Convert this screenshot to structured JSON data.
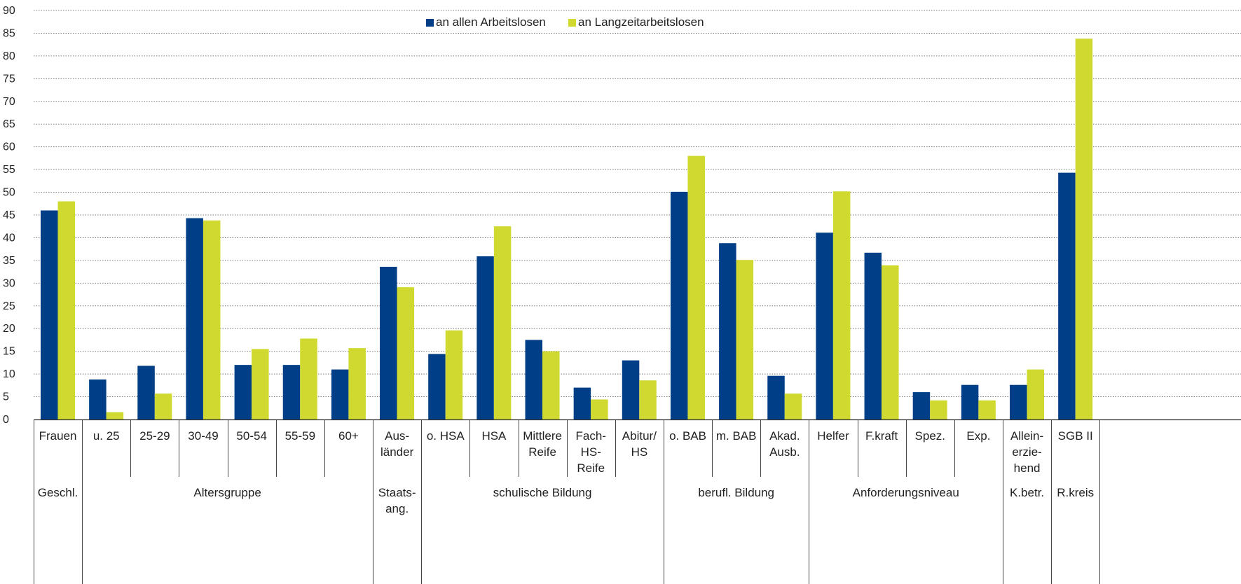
{
  "chart_data": {
    "type": "bar",
    "ylim": [
      0,
      90
    ],
    "yticks": [
      "0",
      "5",
      "10",
      "15",
      "20",
      "25",
      "30",
      "35",
      "40",
      "45",
      "50",
      "55",
      "60",
      "65",
      "70",
      "75",
      "80",
      "85",
      "90"
    ],
    "grid": true,
    "legend_position": "top-center",
    "series": [
      {
        "name": "an allen Arbeitslosen",
        "color": "#003f87",
        "values": [
          46,
          8.8,
          11.8,
          44.3,
          12,
          12,
          11,
          33.6,
          14.4,
          35.9,
          17.5,
          7,
          13,
          50.1,
          38.8,
          9.6,
          41.1,
          36.7,
          6,
          7.6,
          7.6,
          54.3
        ]
      },
      {
        "name": "an Langzeitarbeitslosen",
        "color": "#cfd92f",
        "values": [
          48,
          1.6,
          5.7,
          43.8,
          15.5,
          17.8,
          15.7,
          29.1,
          19.6,
          42.5,
          15,
          4.4,
          8.6,
          58,
          35.1,
          5.7,
          50.2,
          33.9,
          4.2,
          4.2,
          11,
          83.8
        ]
      }
    ],
    "categories": [
      [
        "Frauen"
      ],
      [
        "u. 25"
      ],
      [
        "25-29"
      ],
      [
        "30-49"
      ],
      [
        "50-54"
      ],
      [
        "55-59"
      ],
      [
        "60+"
      ],
      [
        "Aus-",
        "länder"
      ],
      [
        "o. HSA"
      ],
      [
        "HSA"
      ],
      [
        "Mittlere",
        "Reife"
      ],
      [
        "Fach-",
        "HS-",
        "Reife"
      ],
      [
        "Abitur/",
        "HS"
      ],
      [
        "o. BAB"
      ],
      [
        "m. BAB"
      ],
      [
        "Akad.",
        "Ausb."
      ],
      [
        "Helfer"
      ],
      [
        "F.kraft"
      ],
      [
        "Spez."
      ],
      [
        "Exp."
      ],
      [
        "Allein-",
        "erzie-",
        "hend"
      ],
      [
        "SGB II"
      ]
    ],
    "groups": [
      {
        "label": [
          "Geschl."
        ],
        "start": 0,
        "end": 0
      },
      {
        "label": [
          "Altersgruppe"
        ],
        "start": 1,
        "end": 6
      },
      {
        "label": [
          "Staats-",
          "ang."
        ],
        "start": 7,
        "end": 7
      },
      {
        "label": [
          "schulische Bildung"
        ],
        "start": 8,
        "end": 12
      },
      {
        "label": [
          "berufl. Bildung"
        ],
        "start": 13,
        "end": 15
      },
      {
        "label": [
          "Anforderungsniveau"
        ],
        "start": 16,
        "end": 19
      },
      {
        "label": [
          "K.betr."
        ],
        "start": 20,
        "end": 20
      },
      {
        "label": [
          "R.kreis"
        ],
        "start": 21,
        "end": 21
      }
    ]
  }
}
